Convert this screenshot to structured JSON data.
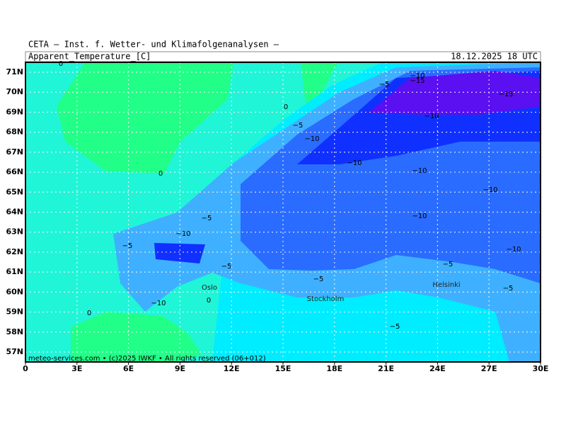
{
  "header": "CETA — Inst. f. Wetter- und Klimafolgenanalysen —",
  "title": "Apparent_Temperature_[C]",
  "valid_time": "18.12.2025 18 UTC",
  "footer": "meteo-services.com • (c)2025 IWKF • All rights reserved (06+012)",
  "lon_labels": [
    "0",
    "3E",
    "6E",
    "9E",
    "12E",
    "15E",
    "18E",
    "21E",
    "24E",
    "27E",
    "30E"
  ],
  "lat_labels": [
    "71N",
    "70N",
    "69N",
    "68N",
    "67N",
    "66N",
    "65N",
    "64N",
    "63N",
    "62N",
    "61N",
    "60N",
    "59N",
    "58N",
    "57N"
  ],
  "contour_labels": [
    "0",
    "0",
    "0",
    "0",
    "0",
    "−5",
    "−5",
    "−5",
    "−5",
    "−5",
    "−5",
    "−5",
    "−5",
    "−5",
    "−10",
    "−10",
    "−10",
    "−10",
    "−10",
    "−10",
    "−10",
    "−10",
    "−10",
    "−10",
    "−15",
    "−15"
  ],
  "cities": [
    "Oslo",
    "Stockholm",
    "Helsinki"
  ]
}
